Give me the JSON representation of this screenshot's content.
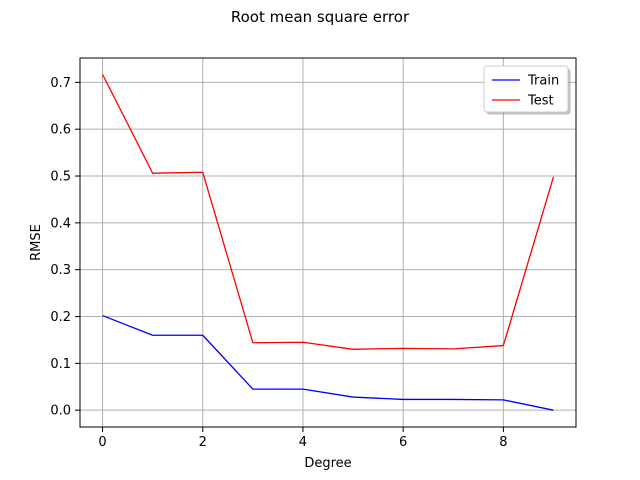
{
  "chart_data": {
    "type": "line",
    "title": "Root mean square error",
    "xlabel": "Degree",
    "ylabel": "RMSE",
    "x": [
      0,
      1,
      2,
      3,
      4,
      5,
      6,
      7,
      8,
      9
    ],
    "xlim": [
      -0.45,
      9.45
    ],
    "ylim": [
      -0.0359,
      0.752
    ],
    "xticks": [
      0,
      2,
      4,
      6,
      8
    ],
    "xtick_labels": [
      "0",
      "2",
      "4",
      "6",
      "8"
    ],
    "yticks": [
      0.0,
      0.1,
      0.2,
      0.3,
      0.4,
      0.5,
      0.6,
      0.7
    ],
    "ytick_labels": [
      "0.0",
      "0.1",
      "0.2",
      "0.3",
      "0.4",
      "0.5",
      "0.6",
      "0.7"
    ],
    "grid": true,
    "legend_position": "top-right",
    "series": [
      {
        "name": "Train",
        "color": "#0000ff",
        "values": [
          0.202,
          0.16,
          0.16,
          0.045,
          0.045,
          0.028,
          0.023,
          0.023,
          0.022,
          0.0
        ]
      },
      {
        "name": "Test",
        "color": "#ff0000",
        "values": [
          0.717,
          0.506,
          0.508,
          0.144,
          0.145,
          0.13,
          0.132,
          0.131,
          0.138,
          0.498
        ]
      }
    ]
  }
}
